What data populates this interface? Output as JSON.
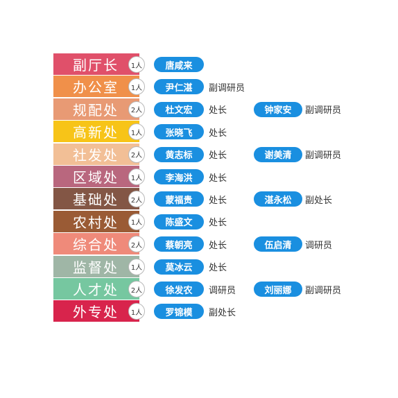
{
  "rows": [
    {
      "dept": "副厅长",
      "color": "#e0506a",
      "count": "1人",
      "people": [
        {
          "name": "唐咸来",
          "title": ""
        }
      ]
    },
    {
      "dept": "办公室",
      "color": "#f0904a",
      "count": "1人",
      "people": [
        {
          "name": "尹仁湛",
          "title": "副调研员"
        }
      ]
    },
    {
      "dept": "规配处",
      "color": "#e89a74",
      "count": "2人",
      "people": [
        {
          "name": "杜文宏",
          "title": "处长"
        },
        {
          "name": "钟家安",
          "title": "副调研员"
        }
      ]
    },
    {
      "dept": "高新处",
      "color": "#f7c418",
      "count": "1人",
      "people": [
        {
          "name": "张晓飞",
          "title": "处长"
        }
      ]
    },
    {
      "dept": "社发处",
      "color": "#f2bf96",
      "count": "2人",
      "people": [
        {
          "name": "黄志标",
          "title": "处长"
        },
        {
          "name": "谢美清",
          "title": "副调研员"
        }
      ]
    },
    {
      "dept": "区域处",
      "color": "#b9677e",
      "count": "1人",
      "people": [
        {
          "name": "李海洪",
          "title": "处长"
        }
      ]
    },
    {
      "dept": "基础处",
      "color": "#835645",
      "count": "2人",
      "people": [
        {
          "name": "蒙福贵",
          "title": "处长"
        },
        {
          "name": "湛永松",
          "title": "副处长"
        }
      ]
    },
    {
      "dept": "农村处",
      "color": "#9a5b35",
      "count": "1人",
      "people": [
        {
          "name": "陈盛文",
          "title": "处长"
        }
      ]
    },
    {
      "dept": "综合处",
      "color": "#ef8a7a",
      "count": "2人",
      "people": [
        {
          "name": "蔡朝亮",
          "title": "处长"
        },
        {
          "name": "伍启清",
          "title": "调研员"
        }
      ]
    },
    {
      "dept": "监督处",
      "color": "#9fb6a6",
      "count": "1人",
      "people": [
        {
          "name": "莫冰云",
          "title": "处长"
        }
      ]
    },
    {
      "dept": "人才处",
      "color": "#76c7a0",
      "count": "2人",
      "people": [
        {
          "name": "徐发农",
          "title": "调研员"
        },
        {
          "name": "刘丽娜",
          "title": "副调研员"
        }
      ]
    },
    {
      "dept": "外专处",
      "color": "#d8244c",
      "count": "1人",
      "people": [
        {
          "name": "罗锦模",
          "title": "副处长"
        }
      ]
    }
  ]
}
